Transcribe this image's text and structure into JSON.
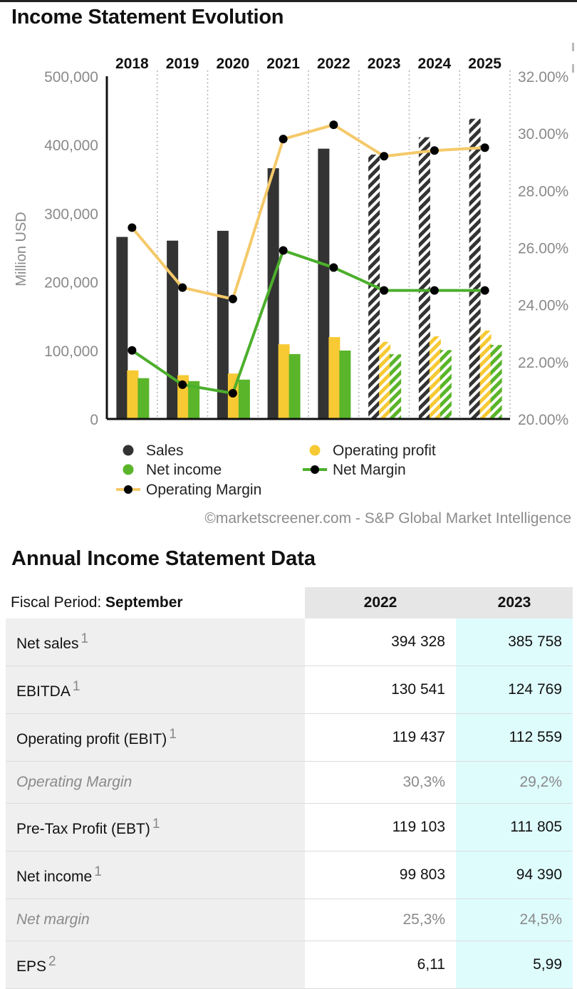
{
  "header": {
    "title": "Income Statement Evolution"
  },
  "chart_data": {
    "type": "bar",
    "categories": [
      "2018",
      "2019",
      "2020",
      "2021",
      "2022",
      "2023",
      "2024",
      "2025"
    ],
    "forecast_from_index": 5,
    "ylabel": "Million USD",
    "ylim": [
      0,
      500000
    ],
    "y_ticks": [
      "0",
      "100,000",
      "200,000",
      "300,000",
      "400,000",
      "500,000"
    ],
    "y2lim": [
      20,
      32
    ],
    "y2_ticks": [
      "20.00%",
      "22.00%",
      "24.00%",
      "26.00%",
      "28.00%",
      "30.00%",
      "32.00%"
    ],
    "grid": "vertical dotted",
    "series": [
      {
        "name": "Sales",
        "kind": "bar",
        "color": "#333333",
        "values": [
          265595,
          260174,
          274515,
          365817,
          394328,
          385758,
          411000,
          438000
        ]
      },
      {
        "name": "Operating profit",
        "kind": "bar",
        "color": "#f7c933",
        "values": [
          70898,
          63930,
          66288,
          108949,
          119437,
          112559,
          120500,
          129000
        ]
      },
      {
        "name": "Net income",
        "kind": "bar",
        "color": "#5ab52a",
        "values": [
          59531,
          55256,
          57411,
          94680,
          99803,
          94390,
          100500,
          108000
        ]
      },
      {
        "name": "Net Margin",
        "kind": "line",
        "axis": "right",
        "color": "#4caf2c",
        "values": [
          22.4,
          21.2,
          20.9,
          25.9,
          25.3,
          24.5,
          24.5,
          24.5
        ]
      },
      {
        "name": "Operating Margin",
        "kind": "line",
        "axis": "right",
        "color": "#f5c96a",
        "values": [
          26.7,
          24.6,
          24.2,
          29.8,
          30.3,
          29.2,
          29.4,
          29.5
        ]
      }
    ],
    "legend": [
      "Sales",
      "Operating profit",
      "Net income",
      "Net Margin",
      "Operating Margin"
    ],
    "legend_position": "bottom"
  },
  "credit": "©marketscreener.com - S&P Global Market Intelligence",
  "table": {
    "title": "Annual Income Statement Data",
    "fiscal_label": "Fiscal Period: ",
    "fiscal_value": "September",
    "years": [
      "2022",
      "2023"
    ],
    "rows": [
      {
        "label": "Net sales",
        "note": "1",
        "v2022": "394 328",
        "v2023": "385 758",
        "italic": false
      },
      {
        "label": "EBITDA",
        "note": "1",
        "v2022": "130 541",
        "v2023": "124 769",
        "italic": false
      },
      {
        "label": "Operating profit (EBIT)",
        "note": "1",
        "v2022": "119 437",
        "v2023": "112 559",
        "italic": false
      },
      {
        "label": "Operating Margin",
        "note": "",
        "v2022": "30,3%",
        "v2023": "29,2%",
        "italic": true
      },
      {
        "label": "Pre-Tax Profit (EBT)",
        "note": "1",
        "v2022": "119 103",
        "v2023": "111 805",
        "italic": false
      },
      {
        "label": "Net income",
        "note": "1",
        "v2022": "99 803",
        "v2023": "94 390",
        "italic": false
      },
      {
        "label": "Net margin",
        "note": "",
        "v2022": "25,3%",
        "v2023": "24,5%",
        "italic": true
      },
      {
        "label": "EPS",
        "note": "2",
        "v2022": "6,11",
        "v2023": "5,99",
        "italic": false
      }
    ]
  }
}
